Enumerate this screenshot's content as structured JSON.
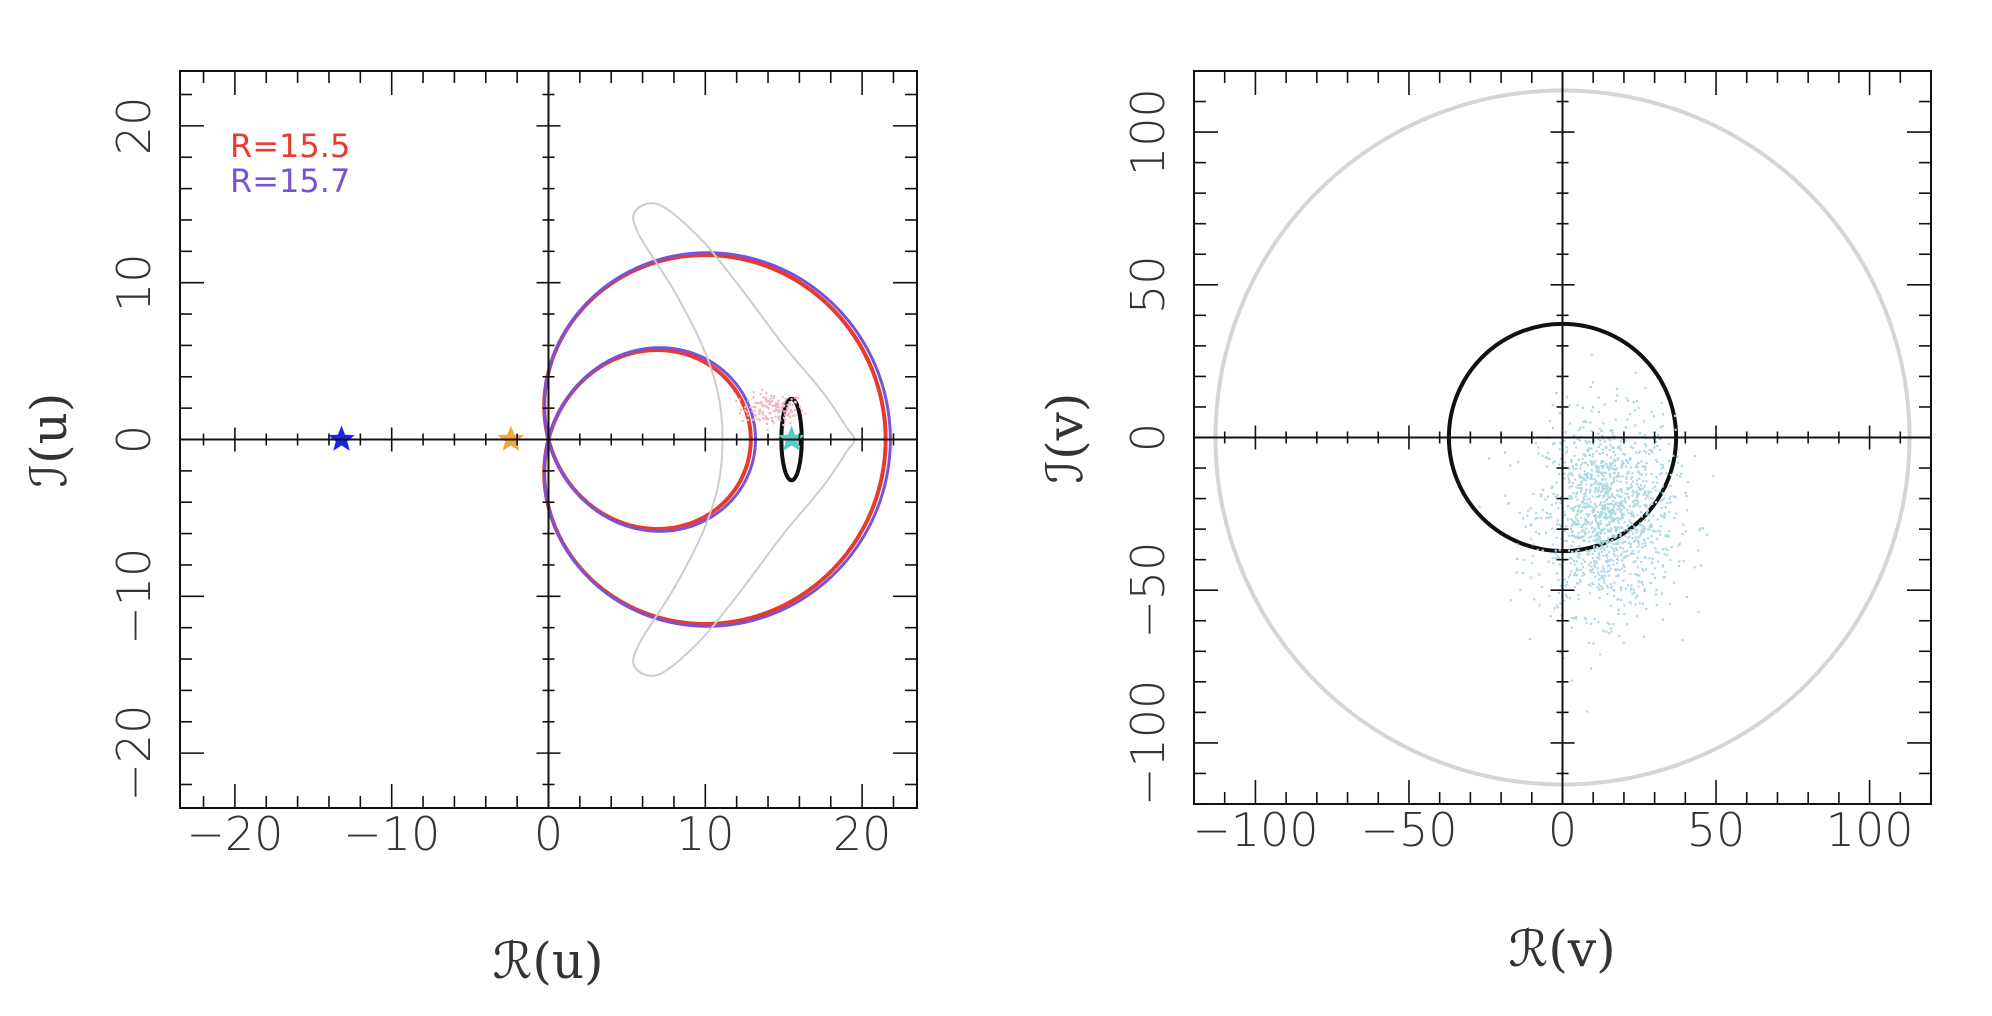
{
  "chart_data": [
    {
      "type": "line",
      "xlabel": "ℛ(u)",
      "ylabel": "ℐ(u)",
      "xlim": [
        -23.5,
        23.5
      ],
      "ylim": [
        -23.5,
        23.5
      ],
      "xticks": [
        -20,
        -10,
        0,
        10,
        20
      ],
      "yticks": [
        -20,
        -10,
        0,
        10,
        20
      ],
      "xtick_labels": [
        "−20",
        "−10",
        "0",
        "10",
        "20"
      ],
      "ytick_labels": [
        "−20",
        "−10",
        "0",
        "10",
        "20"
      ],
      "minor_step": 2,
      "crosshair": true,
      "legend_position": "top-left",
      "series": [
        {
          "name": "R=15.5",
          "kind": "limacon",
          "a": 4.3,
          "b": 17.2,
          "color": "#e83a2e"
        },
        {
          "name": "R=15.7",
          "kind": "limacon",
          "a": 4.3,
          "b": 17.5,
          "color": "#7a52d6"
        },
        {
          "kind": "crescent",
          "color": "#cccccc",
          "points": [
            [
              5.5,
              14.5
            ],
            [
              7,
              15
            ],
            [
              9.5,
              13
            ],
            [
              12,
              10
            ],
            [
              15,
              6
            ],
            [
              17.5,
              3
            ],
            [
              19,
              0.8
            ],
            [
              19.5,
              0
            ],
            [
              19,
              -0.8
            ],
            [
              17.5,
              -3
            ],
            [
              15,
              -6
            ],
            [
              12,
              -10
            ],
            [
              9.5,
              -13
            ],
            [
              7,
              -15
            ],
            [
              5.5,
              -14.5
            ],
            [
              5.8,
              -13
            ],
            [
              8,
              -9.5
            ],
            [
              9.8,
              -6
            ],
            [
              10.8,
              -3
            ],
            [
              11.1,
              0
            ],
            [
              10.8,
              3
            ],
            [
              9.8,
              6
            ],
            [
              8,
              9.5
            ],
            [
              5.8,
              13
            ]
          ]
        },
        {
          "kind": "ellipse",
          "color": "#111111",
          "center": [
            15.5,
            0
          ],
          "rx": 0.65,
          "ry": 2.6
        },
        {
          "kind": "cloud",
          "color": "#f4b7c1",
          "center": [
            14.2,
            2.0
          ],
          "spread": [
            1.0,
            0.5
          ],
          "count": 140
        }
      ],
      "markers": [
        {
          "symbol": "star",
          "x": -13.2,
          "y": 0,
          "color": "#1426e6"
        },
        {
          "symbol": "star",
          "x": -2.4,
          "y": 0,
          "color": "#f5a53c"
        },
        {
          "symbol": "star",
          "x": 15.5,
          "y": 0,
          "color": "#5cc9c9"
        }
      ]
    },
    {
      "type": "scatter",
      "xlabel": "ℛ(v)",
      "ylabel": "ℐ(v)",
      "xlim": [
        -120,
        120
      ],
      "ylim": [
        -120,
        120
      ],
      "xticks": [
        -100,
        -50,
        0,
        50,
        100
      ],
      "yticks": [
        -100,
        -50,
        0,
        50,
        100
      ],
      "xtick_labels": [
        "−100",
        "−50",
        "0",
        "50",
        "100"
      ],
      "ytick_labels": [
        "−100",
        "−50",
        "0",
        "50",
        "100"
      ],
      "minor_step": 10,
      "crosshair": true,
      "series": [
        {
          "kind": "circle",
          "color": "#d5d5d5",
          "center": [
            0,
            0
          ],
          "r": 113
        },
        {
          "kind": "circle",
          "color": "#111111",
          "center": [
            0,
            0
          ],
          "r": 37
        },
        {
          "kind": "cloud",
          "color": "#add8e6",
          "center": [
            14,
            -25
          ],
          "spread": [
            11,
            16
          ],
          "count": 1400
        }
      ]
    }
  ]
}
